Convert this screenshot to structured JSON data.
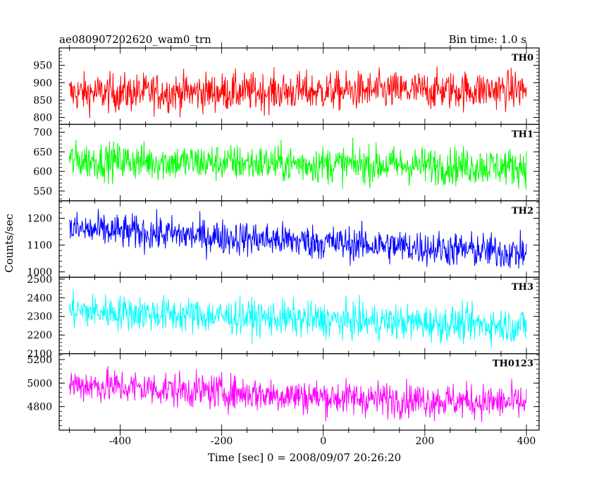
{
  "header": {
    "title": "ae080907202620_wam0_trn",
    "bin_time": "Bin time: 1.0 s"
  },
  "chart_data": {
    "type": "line",
    "xlabel": "Time [sec] 0 = 2008/09/07 20:26:20",
    "ylabel": "Counts/sec",
    "xlim": [
      -520,
      425
    ],
    "x_ticks": [
      -400,
      -200,
      0,
      200,
      400
    ],
    "x_step": 1.0,
    "x_range": [
      -500,
      400
    ],
    "grid": false,
    "panels": [
      {
        "name": "TH0",
        "color": "#ff0000",
        "ylim": [
          780,
          1000
        ],
        "y_ticks": [
          800,
          850,
          900,
          950
        ],
        "trend": [
          [
            -500,
            870
          ],
          [
            0,
            875
          ],
          [
            400,
            880
          ]
        ],
        "noise": 28
      },
      {
        "name": "TH1",
        "color": "#00ff00",
        "ylim": [
          525,
          720
        ],
        "y_ticks": [
          550,
          600,
          650,
          700
        ],
        "trend": [
          [
            -500,
            628
          ],
          [
            0,
            618
          ],
          [
            400,
            612
          ]
        ],
        "noise": 24
      },
      {
        "name": "TH2",
        "color": "#0000ff",
        "ylim": [
          980,
          1265
        ],
        "y_ticks": [
          1000,
          1100,
          1200
        ],
        "trend": [
          [
            -500,
            1160
          ],
          [
            0,
            1110
          ],
          [
            400,
            1070
          ]
        ],
        "noise": 33
      },
      {
        "name": "TH3",
        "color": "#00ffff",
        "ylim": [
          2100,
          2510
        ],
        "y_ticks": [
          2100,
          2200,
          2300,
          2400,
          2500
        ],
        "trend": [
          [
            -500,
            2330
          ],
          [
            0,
            2280
          ],
          [
            400,
            2250
          ]
        ],
        "noise": 48
      },
      {
        "name": "TH0123",
        "color": "#ff00ff",
        "ylim": [
          4600,
          5250
        ],
        "y_ticks": [
          4800,
          5000,
          5200
        ],
        "trend": [
          [
            -500,
            4990
          ],
          [
            0,
            4880
          ],
          [
            400,
            4830
          ]
        ],
        "noise": 75
      }
    ]
  }
}
